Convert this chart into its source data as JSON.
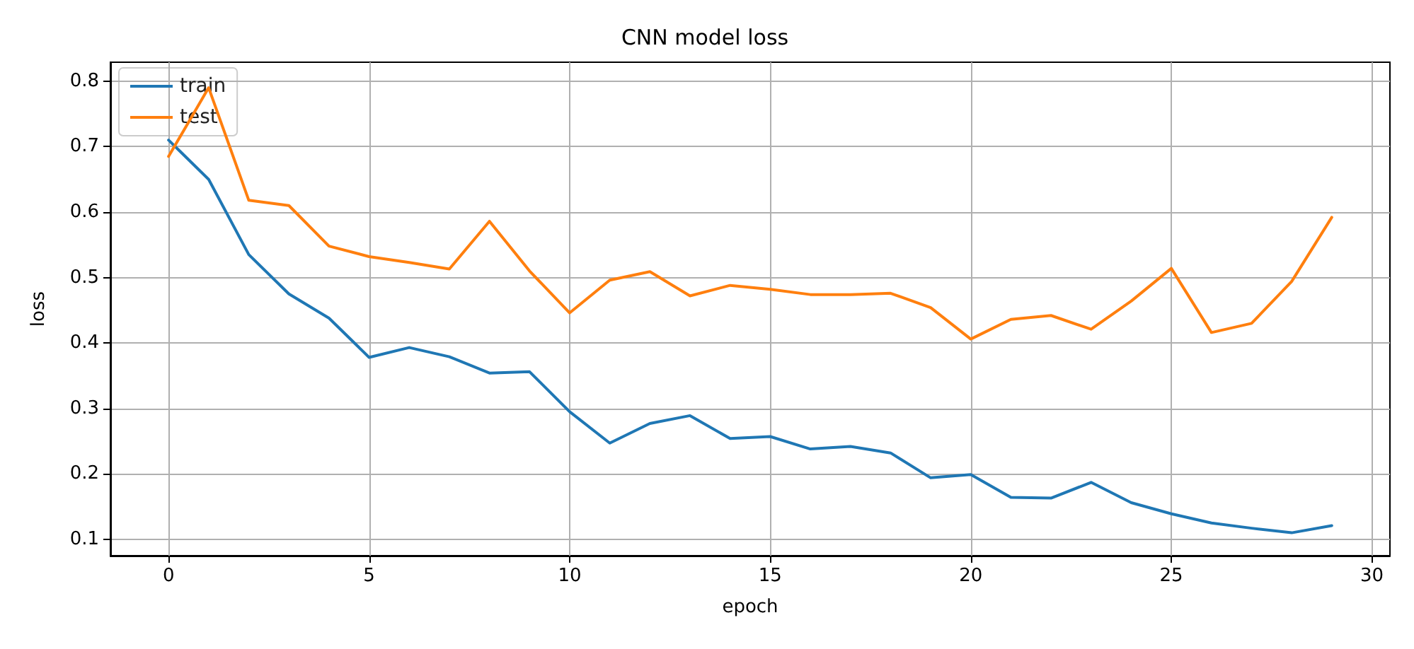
{
  "chart_data": {
    "type": "line",
    "title": "CNN model loss",
    "xlabel": "epoch",
    "ylabel": "loss",
    "x": [
      0,
      1,
      2,
      3,
      4,
      5,
      6,
      7,
      8,
      9,
      10,
      11,
      12,
      13,
      14,
      15,
      16,
      17,
      18,
      19,
      20,
      21,
      22,
      23,
      24,
      25,
      26,
      27,
      28,
      29
    ],
    "series": [
      {
        "name": "train",
        "color": "#1f77b4",
        "values": [
          0.71,
          0.65,
          0.535,
          0.475,
          0.438,
          0.378,
          0.393,
          0.379,
          0.354,
          0.356,
          0.295,
          0.247,
          0.277,
          0.289,
          0.254,
          0.257,
          0.238,
          0.242,
          0.232,
          0.194,
          0.199,
          0.164,
          0.163,
          0.187,
          0.156,
          0.139,
          0.125,
          0.117,
          0.11,
          0.121
        ]
      },
      {
        "name": "test",
        "color": "#ff7f0e",
        "values": [
          0.685,
          0.79,
          0.618,
          0.61,
          0.548,
          0.532,
          0.523,
          0.513,
          0.586,
          0.51,
          0.446,
          0.496,
          0.509,
          0.472,
          0.488,
          0.482,
          0.474,
          0.474,
          0.476,
          0.454,
          0.406,
          0.436,
          0.442,
          0.421,
          0.464,
          0.514,
          0.416,
          0.43,
          0.494,
          0.592
        ]
      }
    ],
    "xlim": [
      -1.45,
      30.45
    ],
    "xticks": [
      0,
      5,
      10,
      15,
      20,
      25,
      30
    ],
    "ylim": [
      0.075,
      0.829
    ],
    "yticks": [
      0.1,
      0.2,
      0.3,
      0.4,
      0.5,
      0.6,
      0.7,
      0.8
    ],
    "grid": true,
    "legend": "top left",
    "marker": "none",
    "line_style": "solid"
  }
}
